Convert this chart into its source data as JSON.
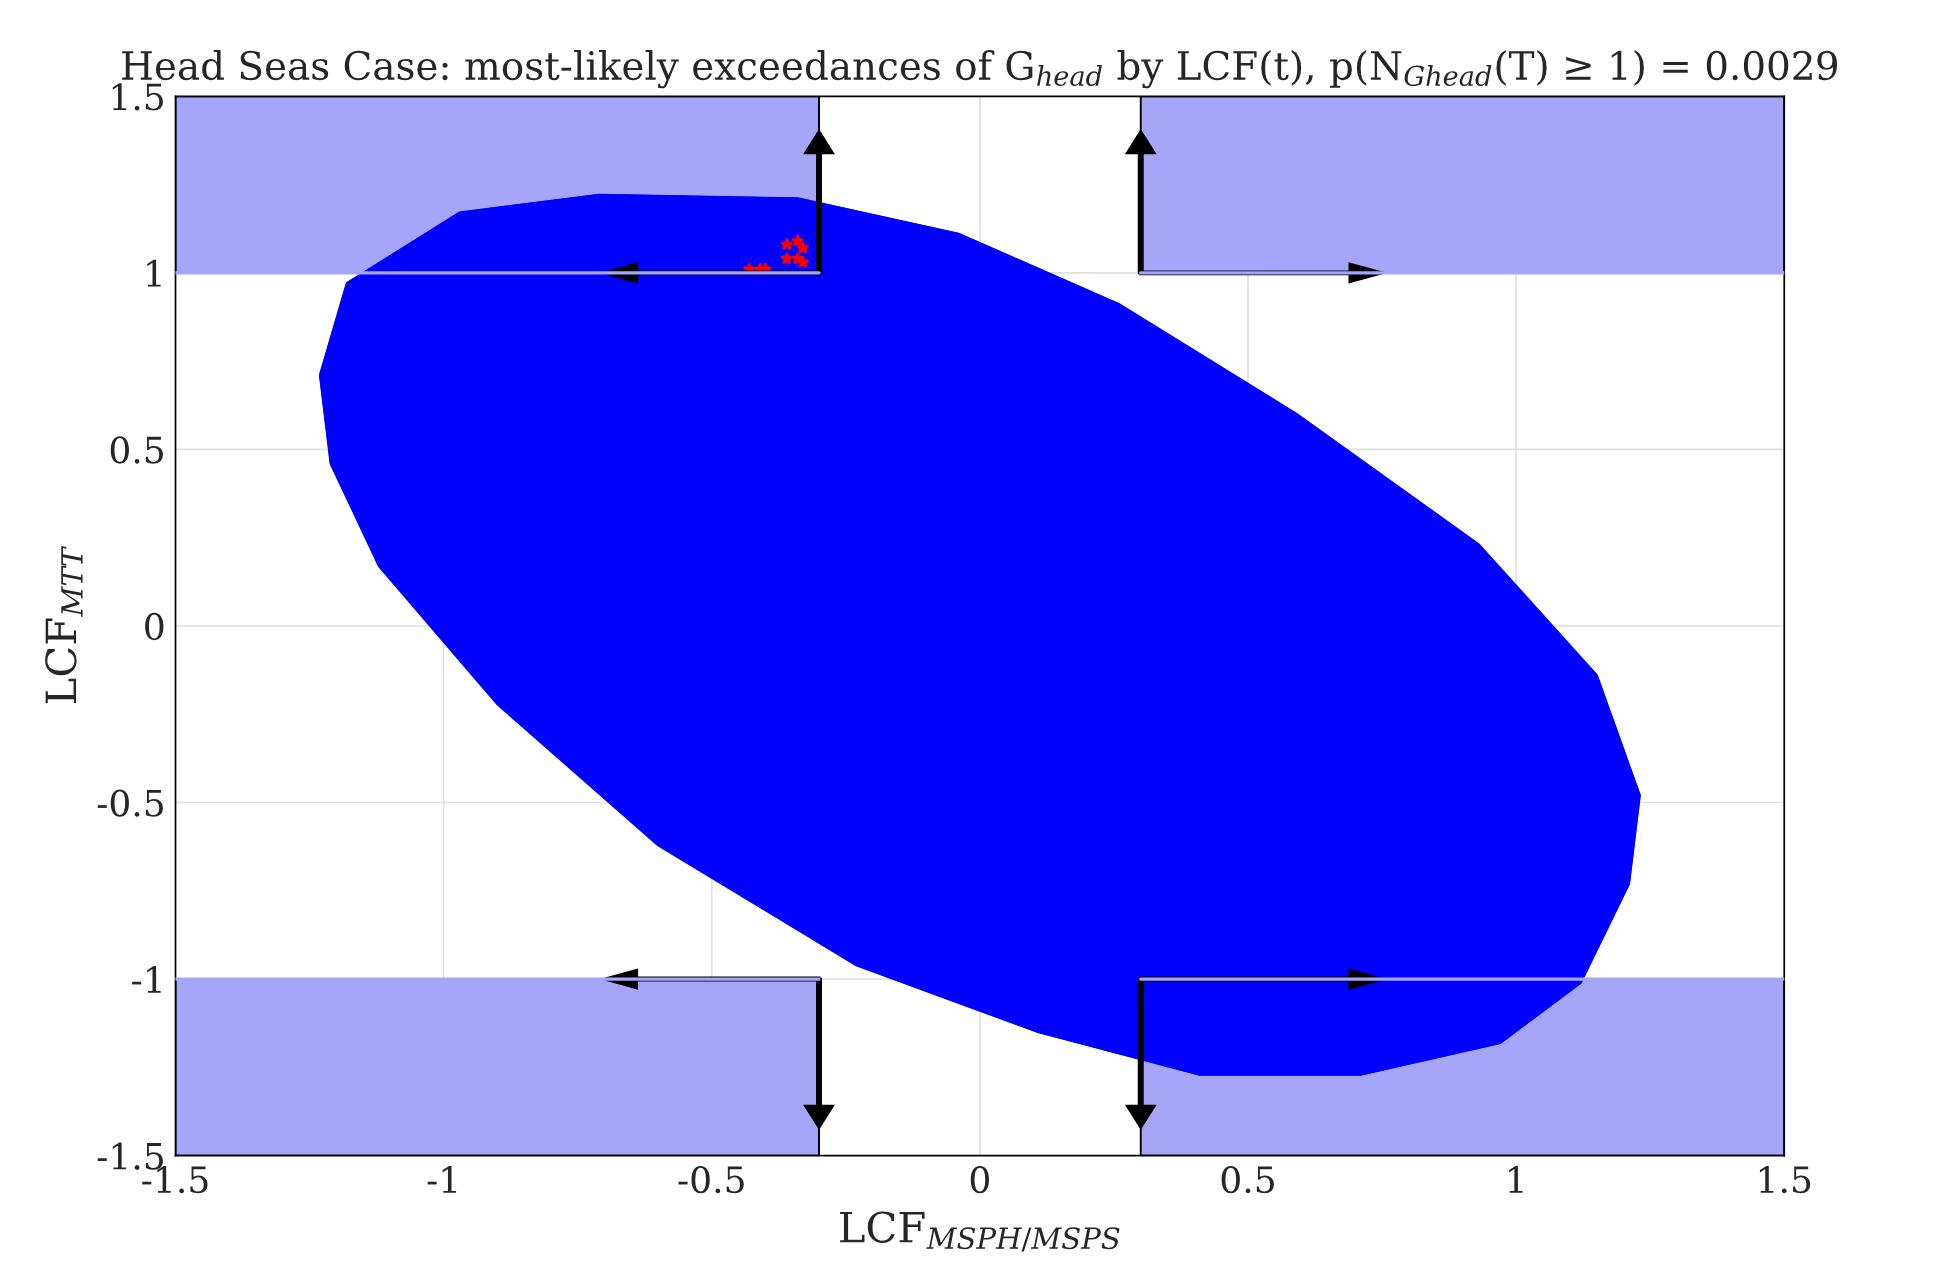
{
  "chart_data": {
    "type": "line",
    "title": "Head Seas Case: most-likely exceedances of G$_{head}$ by LCF(t), p(N$_{Ghead}$(T) ≥ 1) = 0.0029",
    "xlabel": "LCF$_{MSPH/MSPS}$",
    "ylabel": "LCF$_{MTT}$",
    "xlim": [
      -1.5,
      1.5
    ],
    "ylim": [
      -1.5,
      1.5
    ],
    "xticks": [
      -1.5,
      -1,
      -0.5,
      0,
      0.5,
      1,
      1.5
    ],
    "yticks": [
      -1.5,
      -1,
      -0.5,
      0,
      0.5,
      1,
      1.5
    ],
    "grid": true,
    "legend": false,
    "series": [
      {
        "type": "line",
        "color": "#a5a5fa",
        "x": [
          -1.5,
          -0.3
        ],
        "values": [
          1,
          1
        ],
        "lower": [
          1,
          1
        ],
        "upper": [
          1.5,
          1.5
        ]
      },
      {
        "type": "line",
        "color": "#a5a5fa",
        "x": [
          0.3,
          1.5
        ],
        "values": [
          1,
          1
        ],
        "lower": [
          1,
          1
        ],
        "upper": [
          1.5,
          1.5
        ]
      },
      {
        "type": "line",
        "color": "#a5a5fa",
        "x": [
          -1.5,
          -0.3
        ],
        "values": [
          -1,
          -1
        ],
        "lower": [
          -1.5,
          -1.5
        ],
        "upper": [
          -1,
          -1
        ]
      },
      {
        "type": "line",
        "color": "#a5a5fa",
        "x": [
          0.3,
          1.5
        ],
        "values": [
          -1,
          -1
        ],
        "lower": [
          -1.5,
          -1.5
        ],
        "upper": [
          -1,
          -1
        ]
      },
      {
        "type": "area",
        "color": "#0000ff",
        "x": [
          -1.23,
          -1.18,
          -0.97,
          -0.71,
          -0.34,
          -0.04,
          0.26,
          0.59,
          0.93,
          1.15,
          1.23,
          1.21,
          1.12,
          0.97,
          0.71,
          0.41,
          0.11,
          -0.23,
          -0.6,
          -0.9,
          -1.12,
          -1.21,
          -1.23
        ],
        "values": [
          0.71,
          0.97,
          1.17,
          1.22,
          1.21,
          1.11,
          0.91,
          0.6,
          0.23,
          -0.14,
          -0.48,
          -0.73,
          -1.01,
          -1.18,
          -1.27,
          -1.27,
          -1.15,
          -0.96,
          -0.62,
          -0.22,
          0.17,
          0.46,
          0.71
        ]
      },
      {
        "type": "scatter",
        "color": "#ff0000",
        "marker": "star",
        "x": [
          -0.43,
          -0.41,
          -0.4,
          -0.36,
          -0.34,
          -0.33,
          -0.36,
          -0.34,
          -0.33
        ],
        "values": [
          1.01,
          1.01,
          1.01,
          1.08,
          1.09,
          1.07,
          1.04,
          1.04,
          1.03
        ]
      }
    ]
  }
}
